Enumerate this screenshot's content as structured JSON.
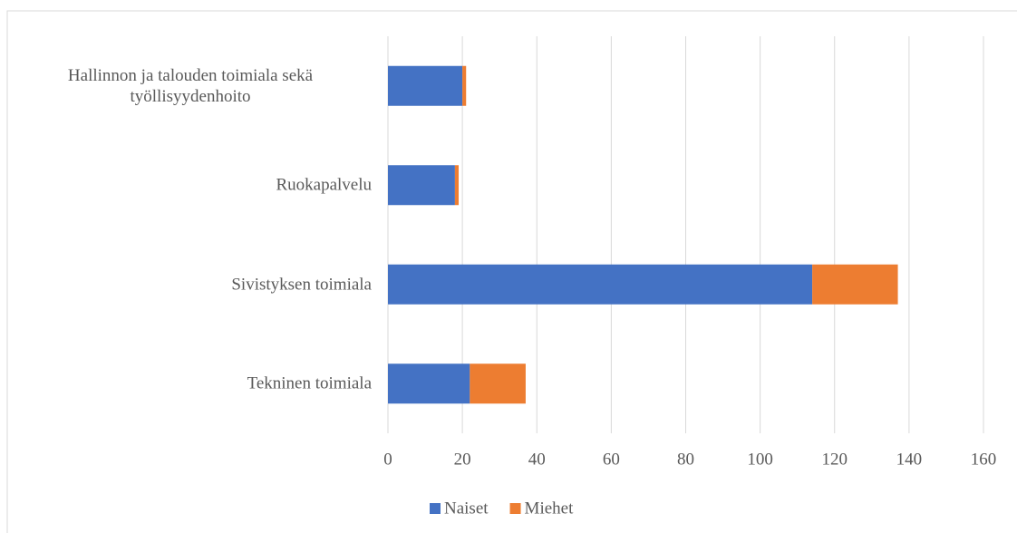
{
  "chart_data": {
    "type": "bar",
    "orientation": "horizontal",
    "stacked": true,
    "categories": [
      "Hallinnon ja talouden toimiala sekä työllisyydenhoito",
      "Ruokapalvelu",
      "Sivistyksen toimiala",
      "Tekninen toimiala"
    ],
    "series": [
      {
        "name": "Naiset",
        "color": "#4472c4",
        "values": [
          20,
          18,
          114,
          22
        ]
      },
      {
        "name": "Miehet",
        "color": "#ed7d31",
        "values": [
          1,
          1,
          23,
          15
        ]
      }
    ],
    "xlim": [
      0,
      160
    ],
    "xticks": [
      0,
      20,
      40,
      60,
      80,
      100,
      120,
      140,
      160
    ],
    "grid": true,
    "legend": "bottom"
  }
}
